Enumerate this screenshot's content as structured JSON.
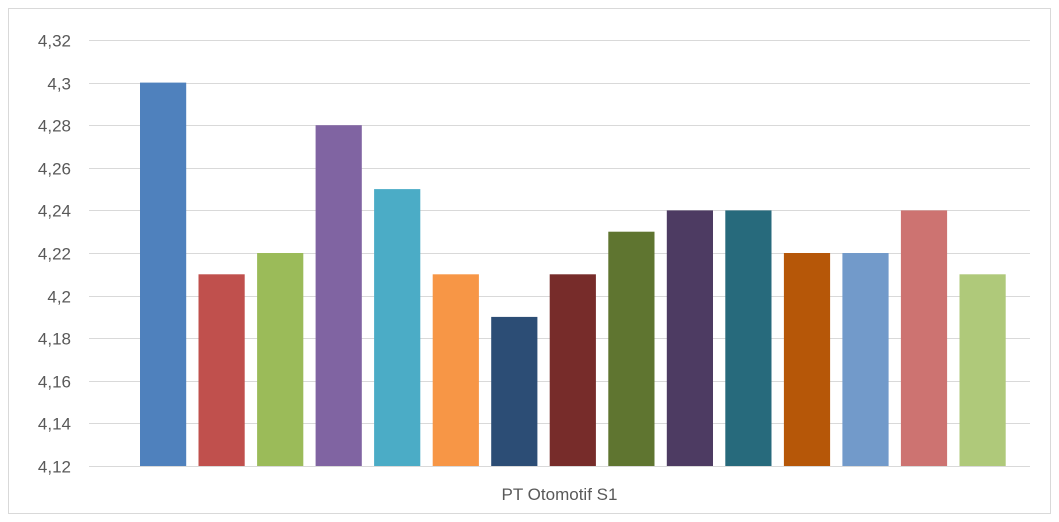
{
  "chart_data": {
    "type": "bar",
    "categories": [
      "PT Otomotif S1"
    ],
    "series": [
      {
        "values": [
          4.3
        ],
        "color": "#4f81bd"
      },
      {
        "values": [
          4.21
        ],
        "color": "#c0504d"
      },
      {
        "values": [
          4.22
        ],
        "color": "#9bbb59"
      },
      {
        "values": [
          4.28
        ],
        "color": "#8064a2"
      },
      {
        "values": [
          4.25
        ],
        "color": "#4bacc6"
      },
      {
        "values": [
          4.21
        ],
        "color": "#f79646"
      },
      {
        "values": [
          4.19
        ],
        "color": "#2c4d75"
      },
      {
        "values": [
          4.21
        ],
        "color": "#772c2a"
      },
      {
        "values": [
          4.23
        ],
        "color": "#5f7530"
      },
      {
        "values": [
          4.24
        ],
        "color": "#4d3b62"
      },
      {
        "values": [
          4.24
        ],
        "color": "#276a7c"
      },
      {
        "values": [
          4.22
        ],
        "color": "#b65708"
      },
      {
        "values": [
          4.22
        ],
        "color": "#729aca"
      },
      {
        "values": [
          4.24
        ],
        "color": "#cd7371"
      },
      {
        "values": [
          4.21
        ],
        "color": "#afc97a"
      }
    ],
    "ylim": [
      4.12,
      4.32
    ],
    "yticks": [
      "4,12",
      "4,14",
      "4,16",
      "4,18",
      "4,2",
      "4,22",
      "4,24",
      "4,26",
      "4,28",
      "4,3",
      "4,32"
    ],
    "ytick_values": [
      4.12,
      4.14,
      4.16,
      4.18,
      4.2,
      4.22,
      4.24,
      4.26,
      4.28,
      4.3,
      4.32
    ],
    "grid": true,
    "title": "",
    "xlabel": "",
    "ylabel": ""
  }
}
